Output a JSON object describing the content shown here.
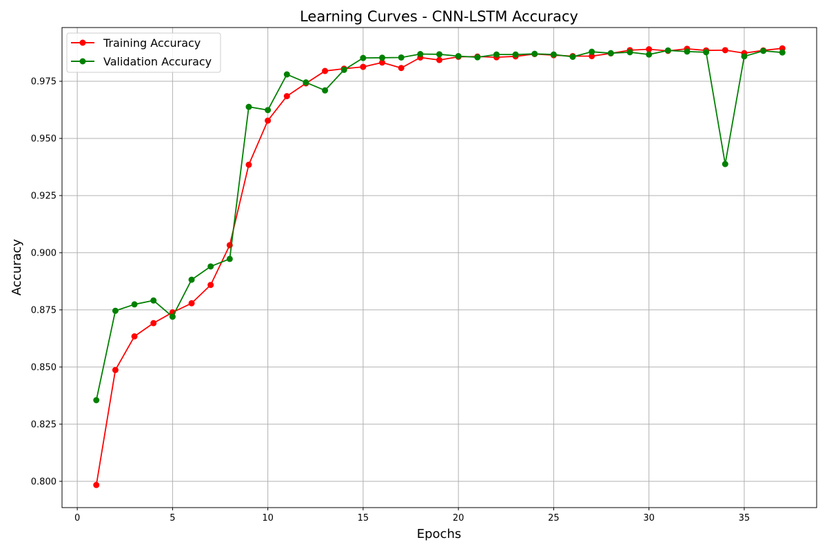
{
  "chart_data": {
    "type": "line",
    "title": "Learning Curves - CNN-LSTM Accuracy",
    "xlabel": "Epochs",
    "ylabel": "Accuracy",
    "xlim": [
      -0.8,
      38.8
    ],
    "ylim": [
      0.7885,
      0.9985
    ],
    "xticks": [
      0,
      5,
      10,
      15,
      20,
      25,
      30,
      35
    ],
    "yticks": [
      0.8,
      0.825,
      0.85,
      0.875,
      0.9,
      0.925,
      0.95,
      0.975
    ],
    "xtick_labels": [
      "0",
      "5",
      "10",
      "15",
      "20",
      "25",
      "30",
      "35"
    ],
    "ytick_labels": [
      "0.800",
      "0.825",
      "0.850",
      "0.875",
      "0.900",
      "0.925",
      "0.950",
      "0.975"
    ],
    "grid": true,
    "legend_position": "top-left",
    "x": [
      1,
      2,
      3,
      4,
      5,
      6,
      7,
      8,
      9,
      10,
      11,
      12,
      13,
      14,
      15,
      16,
      17,
      18,
      19,
      20,
      21,
      22,
      23,
      24,
      25,
      26,
      27,
      28,
      29,
      30,
      31,
      32,
      33,
      34,
      35,
      36,
      37
    ],
    "series": [
      {
        "name": "Training Accuracy",
        "color": "#ff0000",
        "marker": "circle",
        "values": [
          0.7984,
          0.8487,
          0.8634,
          0.8692,
          0.8739,
          0.8779,
          0.8859,
          0.9033,
          0.9385,
          0.9578,
          0.9685,
          0.9741,
          0.9795,
          0.9805,
          0.9813,
          0.9832,
          0.9808,
          0.9854,
          0.9843,
          0.9857,
          0.9858,
          0.9855,
          0.9859,
          0.9869,
          0.9864,
          0.986,
          0.986,
          0.9872,
          0.9886,
          0.989,
          0.9883,
          0.9892,
          0.9885,
          0.9886,
          0.9873,
          0.9885,
          0.9894
        ]
      },
      {
        "name": "Validation Accuracy",
        "color": "#008000",
        "marker": "circle",
        "values": [
          0.8355,
          0.8746,
          0.8774,
          0.8791,
          0.872,
          0.8882,
          0.894,
          0.8973,
          0.9638,
          0.9624,
          0.978,
          0.9745,
          0.971,
          0.98,
          0.9852,
          0.9853,
          0.9854,
          0.9869,
          0.9868,
          0.986,
          0.9855,
          0.9867,
          0.9867,
          0.987,
          0.9867,
          0.9857,
          0.9879,
          0.9873,
          0.9877,
          0.9867,
          0.9885,
          0.988,
          0.9877,
          0.9388,
          0.9859,
          0.9883,
          0.9876
        ]
      }
    ]
  }
}
